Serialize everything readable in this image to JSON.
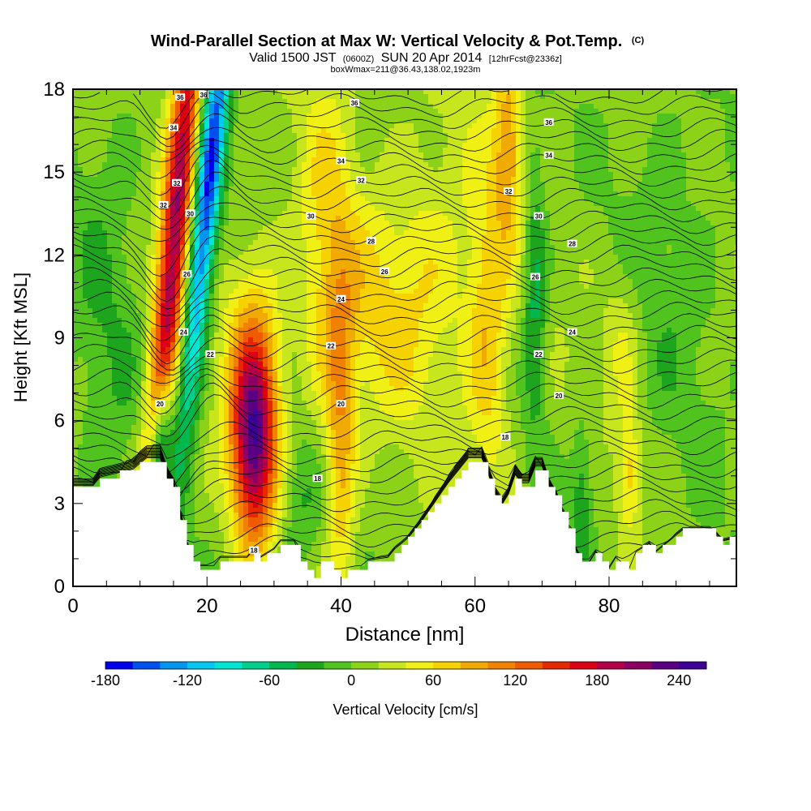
{
  "chart_data": {
    "type": "heatmap",
    "title_main": "Wind-Parallel Section at Max W: Vertical Velocity & Pot.Temp.",
    "title_copyright": "(C)",
    "subtitle_valid": "Valid 1500 JST",
    "subtitle_utc": "(0600Z)",
    "subtitle_date": "SUN 20 Apr 2014",
    "subtitle_forecast": "[12hrFcst@2336z]",
    "subtitle_box": "boxWmax=211@36.43,138.02,1923m",
    "xlabel": "Distance [nm]",
    "ylabel": "Height [Kft MSL]",
    "xlim": [
      0,
      99
    ],
    "ylim": [
      0,
      18
    ],
    "x_ticks": [
      "0",
      "20",
      "40",
      "60",
      "80"
    ],
    "y_ticks": [
      "0",
      "3",
      "6",
      "9",
      "12",
      "15",
      "18"
    ],
    "colorbar_label": "Vertical Velocity [cm/s]",
    "colorbar_ticks": [
      "-180",
      "-120",
      "-60",
      "0",
      "60",
      "120",
      "180",
      "240"
    ],
    "colorbar_range": [
      -180,
      260
    ],
    "colorbar_step": 20,
    "colorbar_colors": [
      "#0000f0",
      "#0050f0",
      "#0096f0",
      "#00c8f0",
      "#00e6d2",
      "#00d08c",
      "#00b84e",
      "#1ea51e",
      "#50c31e",
      "#8cd219",
      "#c8e61e",
      "#f0f014",
      "#f5d200",
      "#f0aa00",
      "#f08200",
      "#f05a00",
      "#e62800",
      "#dc0014",
      "#b40046",
      "#8c0064",
      "#5a0082",
      "#3c0096"
    ],
    "velocity_features": [
      {
        "x": 15,
        "y": 12,
        "w": 190,
        "sx": 1.6,
        "sy": 10,
        "tilt": 0.35
      },
      {
        "x": 20,
        "y": 14,
        "w": -170,
        "sx": 1.4,
        "sy": 6,
        "tilt": 0.4
      },
      {
        "x": 13,
        "y": 5,
        "w": -160,
        "sx": 1.2,
        "sy": 2,
        "tilt": 0.3
      },
      {
        "x": 27,
        "y": 5,
        "w": 185,
        "sx": 2.3,
        "sy": 2.6,
        "tilt": 0
      },
      {
        "x": 27,
        "y": 8,
        "w": 70,
        "sx": 3,
        "sy": 3,
        "tilt": 0
      },
      {
        "x": 34,
        "y": 3,
        "w": -40,
        "sx": 2.5,
        "sy": 2,
        "tilt": 0
      },
      {
        "x": 40,
        "y": 5,
        "w": 70,
        "sx": 1.5,
        "sy": 4,
        "tilt": 0
      },
      {
        "x": 38,
        "y": 12,
        "w": 50,
        "sx": 3,
        "sy": 5,
        "tilt": 0
      },
      {
        "x": 46,
        "y": 10,
        "w": 45,
        "sx": 6,
        "sy": 3,
        "tilt": 0
      },
      {
        "x": 55,
        "y": 12,
        "w": 30,
        "sx": 5,
        "sy": 4,
        "tilt": 0
      },
      {
        "x": 62,
        "y": 9,
        "w": 65,
        "sx": 2.2,
        "sy": 4,
        "tilt": 0
      },
      {
        "x": 65,
        "y": 16,
        "w": 80,
        "sx": 1.5,
        "sy": 2.5,
        "tilt": 0
      },
      {
        "x": 69,
        "y": 10.5,
        "w": -60,
        "sx": 1.2,
        "sy": 3.5,
        "tilt": 0
      },
      {
        "x": 76,
        "y": 3,
        "w": -45,
        "sx": 1.2,
        "sy": 2,
        "tilt": 0
      },
      {
        "x": 83,
        "y": 4,
        "w": 60,
        "sx": 1.2,
        "sy": 1.5,
        "tilt": 0
      },
      {
        "x": 82,
        "y": 9,
        "w": 35,
        "sx": 2,
        "sy": 2,
        "tilt": 0
      },
      {
        "x": 5,
        "y": 10,
        "w": -25,
        "sx": 4,
        "sy": 8,
        "tilt": 0
      },
      {
        "x": 90,
        "y": 12,
        "w": -20,
        "sx": 6,
        "sy": 6,
        "tilt": 0
      }
    ],
    "terrain_kft": [
      [
        0,
        3.6
      ],
      [
        3,
        3.6
      ],
      [
        4,
        3.9
      ],
      [
        9,
        4.2
      ],
      [
        11,
        4.6
      ],
      [
        13,
        4.6
      ],
      [
        14,
        3.9
      ],
      [
        15,
        3.5
      ],
      [
        16,
        2.5
      ],
      [
        17,
        1.5
      ],
      [
        18,
        0.8
      ],
      [
        19,
        0.7
      ],
      [
        21,
        0.7
      ],
      [
        22,
        1.0
      ],
      [
        24,
        1.0
      ],
      [
        26,
        1.0
      ],
      [
        27,
        1.3
      ],
      [
        28,
        1.0
      ],
      [
        30,
        1.3
      ],
      [
        31,
        1.6
      ],
      [
        33,
        1.6
      ],
      [
        34,
        1.0
      ],
      [
        35,
        0.5
      ],
      [
        36,
        0.3
      ],
      [
        37,
        0.8
      ],
      [
        38,
        0.8
      ],
      [
        39,
        0.5
      ],
      [
        40,
        0.3
      ],
      [
        41,
        0.5
      ],
      [
        43,
        0.6
      ],
      [
        44,
        0.9
      ],
      [
        47,
        1.0
      ],
      [
        48,
        1.3
      ],
      [
        50,
        1.7
      ],
      [
        52,
        2.3
      ],
      [
        54,
        3.0
      ],
      [
        56,
        3.7
      ],
      [
        58,
        4.3
      ],
      [
        59,
        4.6
      ],
      [
        61,
        4.6
      ],
      [
        62,
        4.0
      ],
      [
        63,
        3.3
      ],
      [
        64,
        2.9
      ],
      [
        65,
        3.3
      ],
      [
        66,
        4.0
      ],
      [
        67,
        3.7
      ],
      [
        68,
        3.7
      ],
      [
        69,
        4.3
      ],
      [
        70,
        4.3
      ],
      [
        71,
        3.6
      ],
      [
        72,
        3.2
      ],
      [
        73,
        2.6
      ],
      [
        74,
        2.0
      ],
      [
        75,
        1.3
      ],
      [
        76,
        0.8
      ],
      [
        77,
        0.8
      ],
      [
        78,
        1.2
      ],
      [
        79,
        0.8
      ],
      [
        80,
        0.6
      ],
      [
        81,
        1.0
      ],
      [
        82,
        0.8
      ],
      [
        83,
        0.6
      ],
      [
        84,
        1.2
      ],
      [
        86,
        1.5
      ],
      [
        87,
        1.2
      ],
      [
        89,
        1.6
      ],
      [
        91,
        2.0
      ],
      [
        95,
        2.0
      ],
      [
        97,
        1.6
      ],
      [
        99,
        1.7
      ]
    ],
    "contour_labels": [
      {
        "text": "36",
        "x": 16,
        "y": 17.7
      },
      {
        "text": "36",
        "x": 19.5,
        "y": 17.8
      },
      {
        "text": "36",
        "x": 42,
        "y": 17.5
      },
      {
        "text": "36",
        "x": 71,
        "y": 16.8
      },
      {
        "text": "34",
        "x": 15,
        "y": 16.6
      },
      {
        "text": "34",
        "x": 40,
        "y": 15.4
      },
      {
        "text": "34",
        "x": 71,
        "y": 15.6
      },
      {
        "text": "32",
        "x": 43,
        "y": 14.7
      },
      {
        "text": "32",
        "x": 15.5,
        "y": 14.6
      },
      {
        "text": "32",
        "x": 65,
        "y": 14.3
      },
      {
        "text": "32",
        "x": 13.5,
        "y": 13.8
      },
      {
        "text": "30",
        "x": 35.5,
        "y": 13.4
      },
      {
        "text": "30",
        "x": 69.5,
        "y": 13.4
      },
      {
        "text": "30",
        "x": 17.5,
        "y": 13.5
      },
      {
        "text": "28",
        "x": 44.5,
        "y": 12.5
      },
      {
        "text": "28",
        "x": 74.5,
        "y": 12.4
      },
      {
        "text": "26",
        "x": 46.5,
        "y": 11.4
      },
      {
        "text": "26",
        "x": 69,
        "y": 11.2
      },
      {
        "text": "26",
        "x": 17,
        "y": 11.3
      },
      {
        "text": "24",
        "x": 40,
        "y": 10.4
      },
      {
        "text": "24",
        "x": 74.5,
        "y": 9.2
      },
      {
        "text": "24",
        "x": 16.5,
        "y": 9.2
      },
      {
        "text": "22",
        "x": 38.5,
        "y": 8.7
      },
      {
        "text": "22",
        "x": 69.5,
        "y": 8.4
      },
      {
        "text": "22",
        "x": 20.5,
        "y": 8.4
      },
      {
        "text": "20",
        "x": 40,
        "y": 6.6
      },
      {
        "text": "20",
        "x": 72.5,
        "y": 6.9
      },
      {
        "text": "20",
        "x": 13,
        "y": 6.6
      },
      {
        "text": "18",
        "x": 64.5,
        "y": 5.4
      },
      {
        "text": "18",
        "x": 36.5,
        "y": 3.9
      },
      {
        "text": "18",
        "x": 27,
        "y": 1.3
      }
    ]
  }
}
